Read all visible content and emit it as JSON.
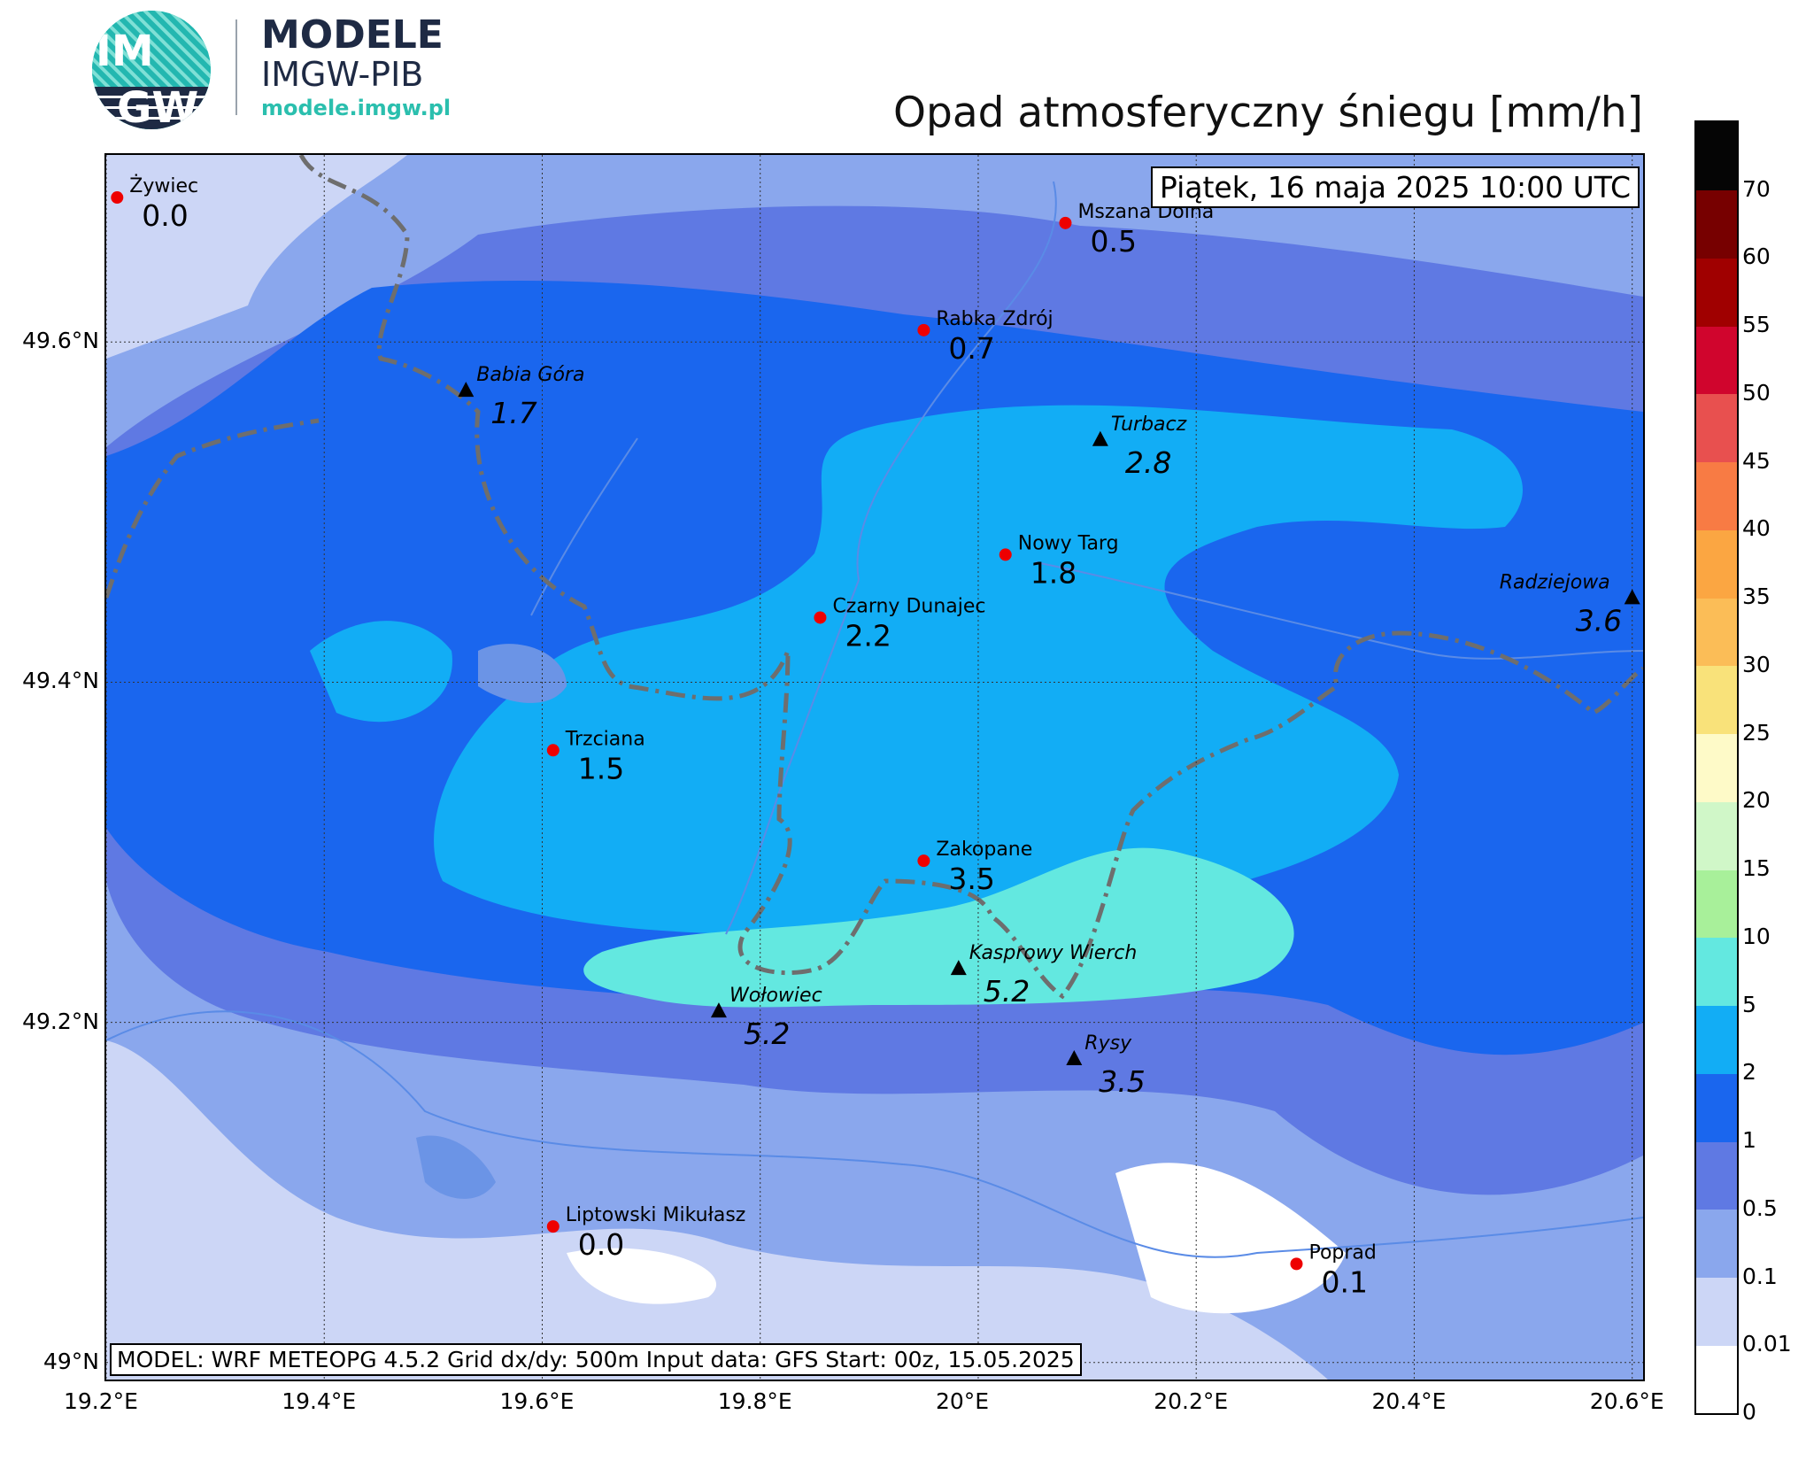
{
  "logo": {
    "badge_line1": "IM",
    "badge_line2": "GW",
    "name": "MODELE",
    "org": "IMGW-PIB",
    "url": "modele.imgw.pl"
  },
  "title": "Opad atmosferyczny śniegu [mm/h]",
  "datetime": "Piątek, 16 maja 2025 10:00 UTC",
  "model_info": "MODEL: WRF METEOPG 4.5.2 Grid dx/dy: 500m Input data: GFS Start: 00z, 15.05.2025",
  "axes": {
    "x_ticks": [
      "19.2°E",
      "19.4°E",
      "19.6°E",
      "19.8°E",
      "20°E",
      "20.2°E",
      "20.4°E",
      "20.6°E"
    ],
    "x_values": [
      19.2,
      19.4,
      19.6,
      19.8,
      20.0,
      20.2,
      20.4,
      20.6
    ],
    "y_ticks": [
      "49°N",
      "49.2°N",
      "49.4°N",
      "49.6°N"
    ],
    "y_values": [
      49.0,
      49.2,
      49.4,
      49.6
    ],
    "lon_range": [
      19.2,
      20.61
    ],
    "lat_range": [
      48.99,
      49.71
    ],
    "grid": true
  },
  "colorbar": {
    "labels": [
      "0",
      "0.01",
      "0.1",
      "0.5",
      "1",
      "2",
      "5",
      "10",
      "15",
      "20",
      "25",
      "30",
      "35",
      "40",
      "45",
      "50",
      "55",
      "60",
      "70"
    ],
    "colors": [
      "#ffffff",
      "#ccd6f6",
      "#8aa7ed",
      "#5f79e3",
      "#1a66ee",
      "#12adf5",
      "#63e8e0",
      "#a8f09a",
      "#d0f7c8",
      "#fefac8",
      "#f9e27a",
      "#fbbd57",
      "#fba642",
      "#f87b44",
      "#e8504f",
      "#d0052d",
      "#a00000",
      "#770000",
      "#050505"
    ]
  },
  "cities": [
    {
      "name": "Żywiec",
      "value": "0.0",
      "lon": 19.21,
      "lat": 49.685
    },
    {
      "name": "Mszana Dolna",
      "value": "0.5",
      "lon": 20.08,
      "lat": 49.67
    },
    {
      "name": "Rabka Zdrój",
      "value": "0.7",
      "lon": 19.95,
      "lat": 49.607
    },
    {
      "name": "Nowy Targ",
      "value": "1.8",
      "lon": 20.025,
      "lat": 49.475
    },
    {
      "name": "Czarny Dunajec",
      "value": "2.2",
      "lon": 19.855,
      "lat": 49.438
    },
    {
      "name": "Trzciana",
      "value": "1.5",
      "lon": 19.61,
      "lat": 49.36
    },
    {
      "name": "Zakopane",
      "value": "3.5",
      "lon": 19.95,
      "lat": 49.295
    },
    {
      "name": "Liptowski Mikułasz",
      "value": "0.0",
      "lon": 19.61,
      "lat": 49.08
    },
    {
      "name": "Poprad",
      "value": "0.1",
      "lon": 20.292,
      "lat": 49.058
    }
  ],
  "peaks": [
    {
      "name": "Babia Góra",
      "value": "1.7",
      "lon": 19.53,
      "lat": 49.572
    },
    {
      "name": "Turbacz",
      "value": "2.8",
      "lon": 20.112,
      "lat": 49.543
    },
    {
      "name": "Radziejowa",
      "value": "3.6",
      "lon": 20.6,
      "lat": 49.45
    },
    {
      "name": "Kasprowy Wierch",
      "value": "5.2",
      "lon": 19.982,
      "lat": 49.232
    },
    {
      "name": "Wołowiec",
      "value": "5.2",
      "lon": 19.762,
      "lat": 49.207
    },
    {
      "name": "Rysy",
      "value": "3.5",
      "lon": 20.088,
      "lat": 49.179
    }
  ]
}
